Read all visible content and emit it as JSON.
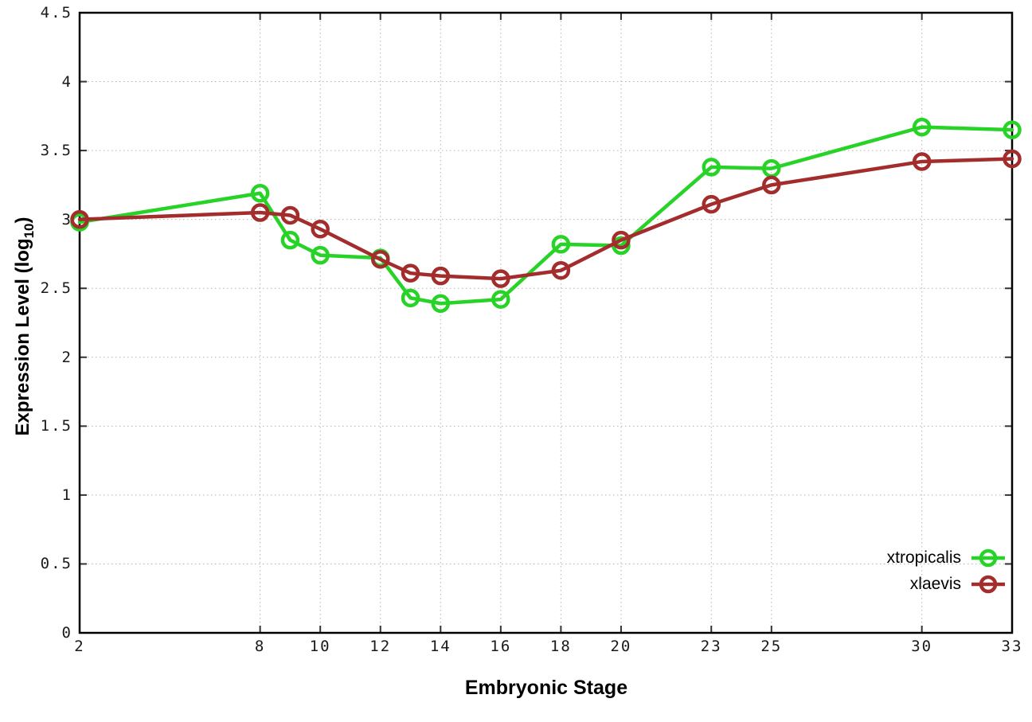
{
  "chart_data": {
    "type": "line",
    "title": "",
    "xlabel": "Embryonic Stage",
    "ylabel": {
      "text": "Expression Level (log",
      "subscript": "10",
      "suffix": ")"
    },
    "xlim": [
      2,
      33
    ],
    "ylim": [
      0,
      4.5
    ],
    "x_ticks": [
      2,
      8,
      10,
      12,
      14,
      16,
      18,
      20,
      23,
      25,
      30,
      33
    ],
    "y_ticks": [
      0,
      0.5,
      1,
      1.5,
      2,
      2.5,
      3,
      3.5,
      4,
      4.5
    ],
    "grid": "dotted",
    "legend_position": "bottom-right",
    "x": [
      2,
      8,
      9,
      10,
      12,
      13,
      14,
      16,
      18,
      20,
      23,
      25,
      30,
      33
    ],
    "series": [
      {
        "name": "xtropicalis",
        "color": "#26d326",
        "values": [
          2.98,
          3.19,
          2.85,
          2.74,
          2.72,
          2.43,
          2.39,
          2.42,
          2.82,
          2.81,
          3.38,
          3.37,
          3.67,
          3.65
        ]
      },
      {
        "name": "xlaevis",
        "color": "#a32c2c",
        "values": [
          3.0,
          3.05,
          3.03,
          2.93,
          2.71,
          2.61,
          2.59,
          2.57,
          2.63,
          2.85,
          3.11,
          3.25,
          3.42,
          3.44
        ]
      }
    ],
    "colors": {
      "grid": "#b4b4b4",
      "border": "#000000",
      "tick": "#333333",
      "tick_text": "#1a1a1a"
    }
  }
}
